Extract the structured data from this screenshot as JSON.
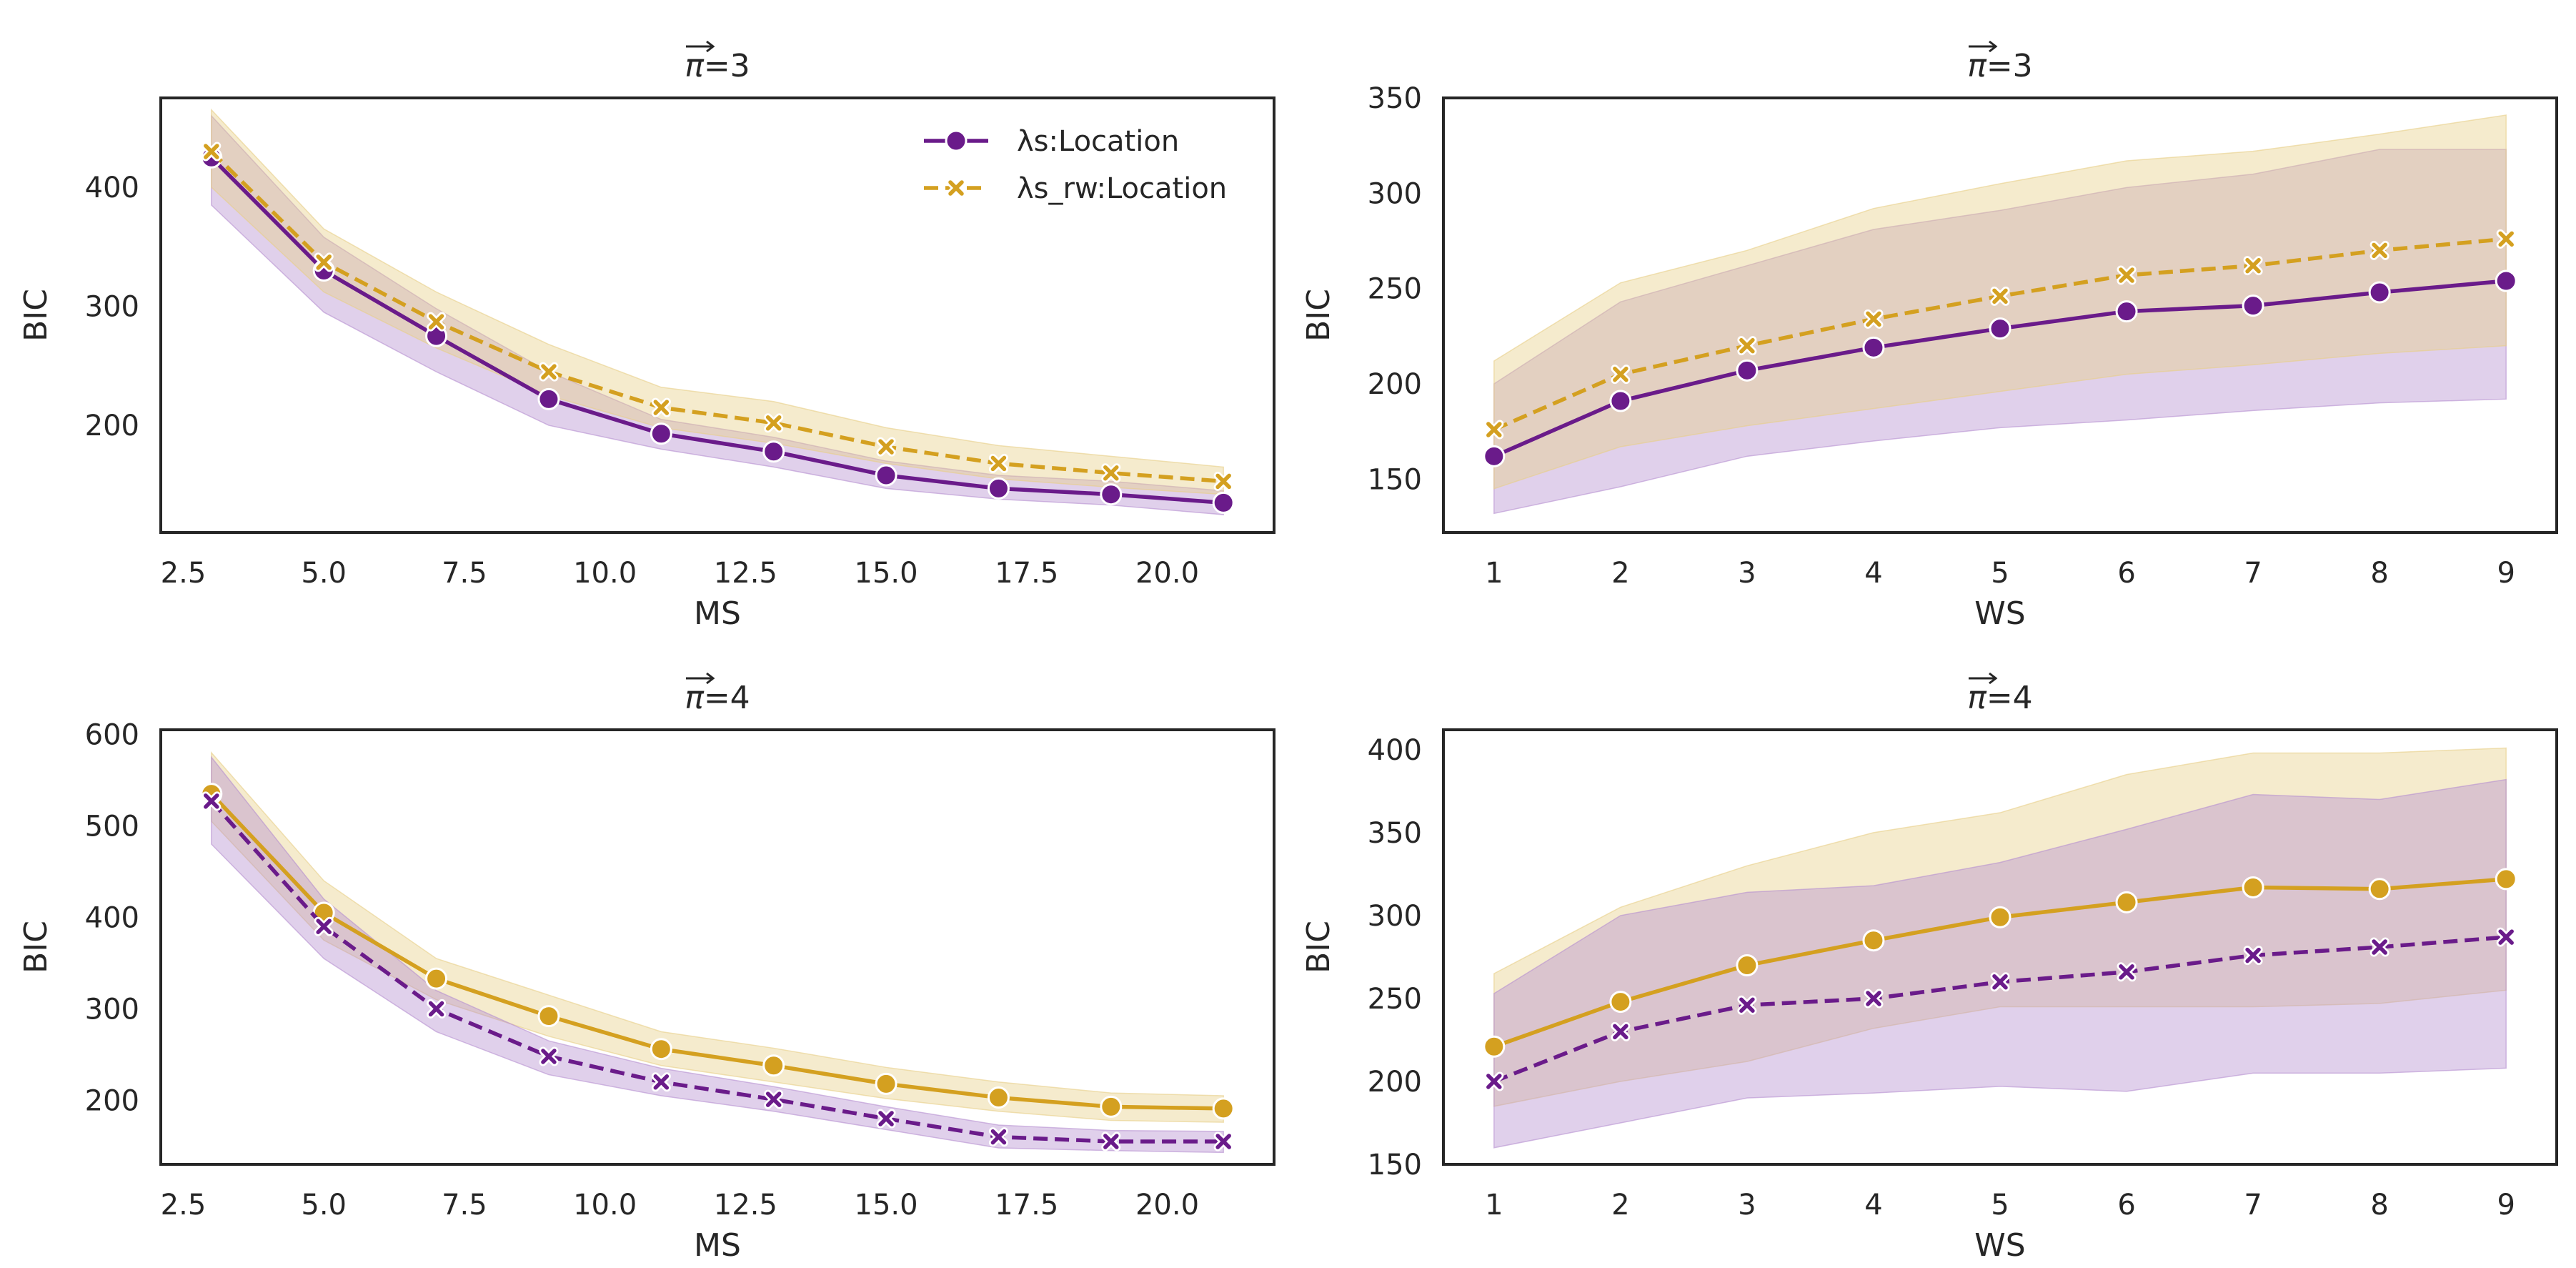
{
  "colors": {
    "purple": "#6a1b8a",
    "gold": "#d4a020",
    "purple_band": "#b58fd0",
    "gold_band": "#e8cf87"
  },
  "legend": {
    "entries": [
      "λs:Location",
      "λs_rw:Location"
    ]
  },
  "chart_data": [
    {
      "type": "line",
      "title": "π=3",
      "title_symbol": "π",
      "title_value": "=3",
      "xlabel": "MS",
      "ylabel": "BIC",
      "x": [
        3,
        5,
        7,
        9,
        11,
        13,
        15,
        17,
        19,
        21
      ],
      "xlim": [
        2.1,
        21.9
      ],
      "ylim": [
        110,
        475
      ],
      "xticks": [
        2.5,
        5.0,
        7.5,
        10.0,
        12.5,
        15.0,
        17.5,
        20.0
      ],
      "xtick_labels": [
        "2.5",
        "5.0",
        "7.5",
        "10.0",
        "12.5",
        "15.0",
        "17.5",
        "20.0"
      ],
      "yticks": [
        200,
        300,
        400
      ],
      "ytick_labels": [
        "200",
        "300",
        "400"
      ],
      "legend": true,
      "series": [
        {
          "name": "λs:Location",
          "color": "purple",
          "dash": false,
          "marker": "circle",
          "values": [
            425,
            330,
            275,
            222,
            193,
            178,
            158,
            147,
            142,
            135
          ],
          "lower": [
            385,
            295,
            245,
            200,
            180,
            165,
            147,
            138,
            133,
            125
          ],
          "upper": [
            460,
            358,
            298,
            245,
            205,
            190,
            170,
            158,
            153,
            145
          ]
        },
        {
          "name": "λs_rw:Location",
          "color": "gold",
          "dash": true,
          "marker": "x",
          "values": [
            430,
            337,
            287,
            245,
            215,
            202,
            182,
            168,
            160,
            153
          ],
          "lower": [
            400,
            312,
            265,
            225,
            198,
            185,
            168,
            155,
            148,
            142
          ],
          "upper": [
            465,
            365,
            312,
            268,
            232,
            220,
            198,
            183,
            174,
            165
          ]
        }
      ]
    },
    {
      "type": "line",
      "title": "π=3",
      "title_symbol": "π",
      "title_value": "=3",
      "xlabel": "WS",
      "ylabel": "BIC",
      "x": [
        1,
        2,
        3,
        4,
        5,
        6,
        7,
        8,
        9
      ],
      "xlim": [
        0.6,
        9.4
      ],
      "ylim": [
        122,
        350
      ],
      "xticks": [
        1,
        2,
        3,
        4,
        5,
        6,
        7,
        8,
        9
      ],
      "xtick_labels": [
        "1",
        "2",
        "3",
        "4",
        "5",
        "6",
        "7",
        "8",
        "9"
      ],
      "yticks": [
        150,
        200,
        250,
        300,
        350
      ],
      "ytick_labels": [
        "150",
        "200",
        "250",
        "300",
        "350"
      ],
      "legend": false,
      "series": [
        {
          "name": "λs:Location",
          "color": "purple",
          "dash": false,
          "marker": "circle",
          "values": [
            162,
            191,
            207,
            219,
            229,
            238,
            241,
            248,
            254
          ],
          "lower": [
            132,
            146,
            162,
            170,
            177,
            181,
            186,
            190,
            192
          ],
          "upper": [
            200,
            243,
            262,
            281,
            291,
            303,
            310,
            323,
            323
          ]
        },
        {
          "name": "λs_rw:Location",
          "color": "gold",
          "dash": true,
          "marker": "x",
          "values": [
            176,
            205,
            220,
            234,
            246,
            257,
            262,
            270,
            276
          ],
          "lower": [
            145,
            167,
            178,
            187,
            196,
            205,
            210,
            216,
            220
          ],
          "upper": [
            212,
            253,
            270,
            292,
            305,
            317,
            322,
            331,
            341
          ]
        }
      ]
    },
    {
      "type": "line",
      "title": "π=4",
      "title_symbol": "π",
      "title_value": "=4",
      "xlabel": "MS",
      "ylabel": "BIC",
      "x": [
        3,
        5,
        7,
        9,
        11,
        13,
        15,
        17,
        19,
        21
      ],
      "xlim": [
        2.1,
        21.9
      ],
      "ylim": [
        130,
        605
      ],
      "xticks": [
        2.5,
        5.0,
        7.5,
        10.0,
        12.5,
        15.0,
        17.5,
        20.0
      ],
      "xtick_labels": [
        "2.5",
        "5.0",
        "7.5",
        "10.0",
        "12.5",
        "15.0",
        "17.5",
        "20.0"
      ],
      "yticks": [
        200,
        300,
        400,
        500,
        600
      ],
      "ytick_labels": [
        "200",
        "300",
        "400",
        "500",
        "600"
      ],
      "legend": false,
      "series": [
        {
          "name": "λs:Location",
          "color": "gold",
          "dash": false,
          "marker": "circle",
          "values": [
            535,
            405,
            333,
            292,
            256,
            238,
            218,
            203,
            193,
            191
          ],
          "lower": [
            505,
            375,
            310,
            270,
            238,
            220,
            202,
            188,
            178,
            176
          ],
          "upper": [
            580,
            440,
            355,
            315,
            275,
            257,
            236,
            220,
            208,
            205
          ]
        },
        {
          "name": "λs_rw:Location",
          "color": "purple",
          "dash": true,
          "marker": "x",
          "values": [
            527,
            390,
            300,
            248,
            220,
            201,
            180,
            160,
            155,
            155
          ],
          "lower": [
            480,
            355,
            275,
            228,
            205,
            188,
            168,
            148,
            145,
            143
          ],
          "upper": [
            575,
            420,
            320,
            265,
            235,
            215,
            193,
            173,
            167,
            166
          ]
        }
      ]
    },
    {
      "type": "line",
      "title": "π=4",
      "title_symbol": "π",
      "title_value": "=4",
      "xlabel": "WS",
      "ylabel": "BIC",
      "x": [
        1,
        2,
        3,
        4,
        5,
        6,
        7,
        8,
        9
      ],
      "xlim": [
        0.6,
        9.4
      ],
      "ylim": [
        150,
        412
      ],
      "xticks": [
        1,
        2,
        3,
        4,
        5,
        6,
        7,
        8,
        9
      ],
      "xtick_labels": [
        "1",
        "2",
        "3",
        "4",
        "5",
        "6",
        "7",
        "8",
        "9"
      ],
      "yticks": [
        150,
        200,
        250,
        300,
        350,
        400
      ],
      "ytick_labels": [
        "150",
        "200",
        "250",
        "300",
        "350",
        "400"
      ],
      "legend": false,
      "series": [
        {
          "name": "λs:Location",
          "color": "gold",
          "dash": false,
          "marker": "circle",
          "values": [
            221,
            248,
            270,
            285,
            299,
            308,
            317,
            316,
            322
          ],
          "lower": [
            185,
            200,
            212,
            232,
            245,
            245,
            245,
            247,
            255
          ],
          "upper": [
            265,
            305,
            330,
            350,
            362,
            385,
            398,
            398,
            401
          ]
        },
        {
          "name": "λs_rw:Location",
          "color": "purple",
          "dash": true,
          "marker": "x",
          "values": [
            200,
            230,
            246,
            250,
            260,
            266,
            276,
            281,
            287
          ],
          "lower": [
            160,
            175,
            190,
            193,
            197,
            194,
            205,
            205,
            208
          ],
          "upper": [
            253,
            300,
            314,
            318,
            332,
            352,
            373,
            370,
            382
          ]
        }
      ]
    }
  ]
}
